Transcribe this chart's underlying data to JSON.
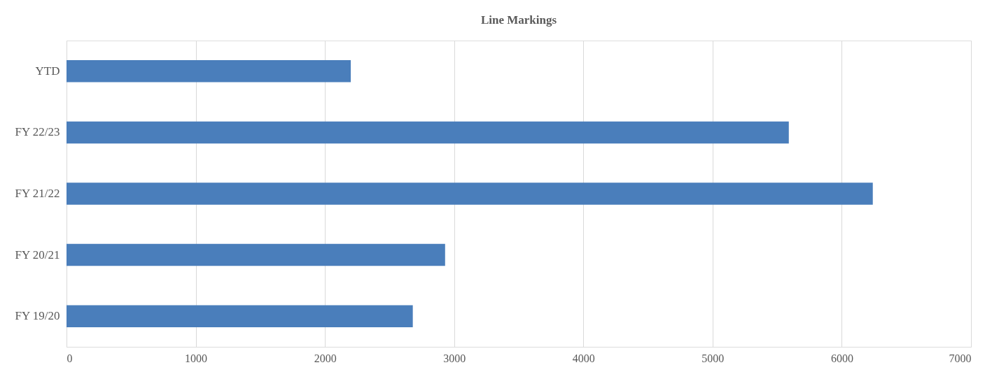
{
  "chart_data": {
    "type": "bar",
    "orientation": "horizontal",
    "title": "Line Markings",
    "categories": [
      "YTD",
      "FY 22/23",
      "FY 21/22",
      "FY 20/21",
      "FY 19/20"
    ],
    "values": [
      2200,
      5590,
      6240,
      2930,
      2680
    ],
    "color": "#4a7ebb",
    "xlim": [
      0,
      7000
    ],
    "xticks": [
      0,
      1000,
      2000,
      3000,
      4000,
      5000,
      6000,
      7000
    ],
    "grid": "x"
  }
}
